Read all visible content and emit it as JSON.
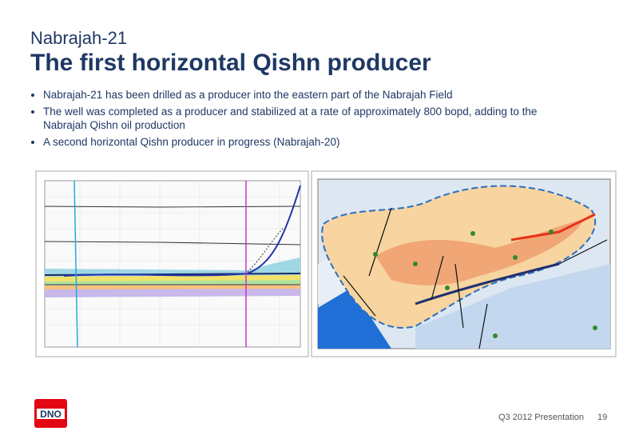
{
  "slide": {
    "subtitle": "Nabrajah-21",
    "title": "The first horizontal Qishn producer",
    "bullets": [
      "Nabrajah-21 has been drilled as a producer into the eastern part of the Nabrajah Field",
      "The well was completed as a producer and stabilized at a rate of approximately 800 bopd, adding to the Nabrajah Qishn oil production",
      "A second horizontal Qishn producer in progress (Nabrajah-20)"
    ],
    "logo": "DNO",
    "footer": "Q3 2012 Presentation",
    "page_number": "19"
  }
}
